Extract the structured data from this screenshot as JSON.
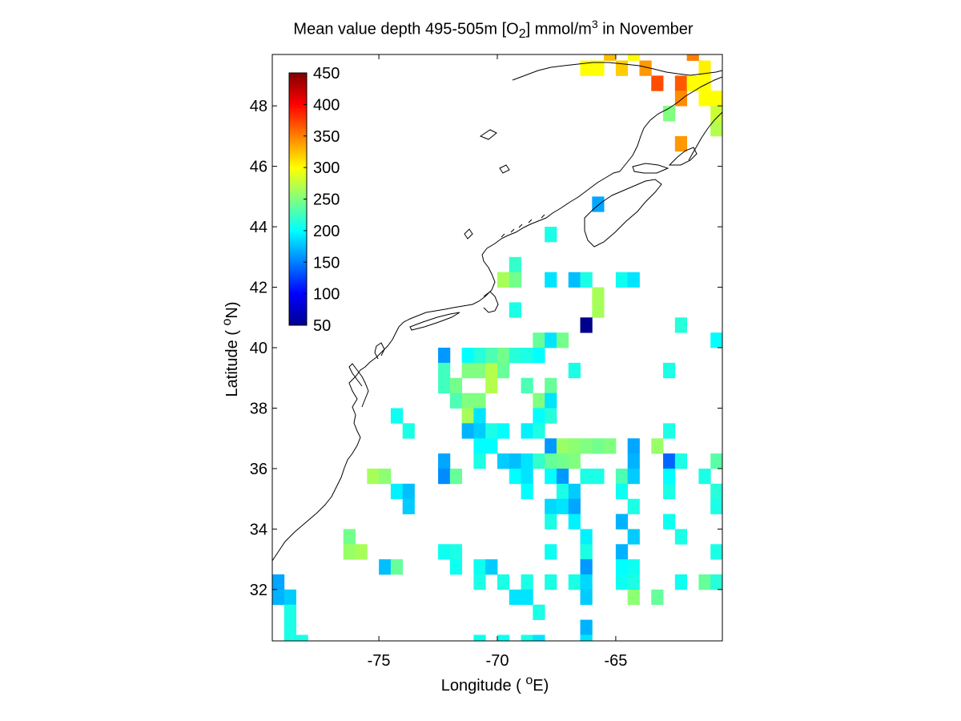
{
  "title": {
    "prefix": "Mean value depth 495-505m [O",
    "subscript": "2",
    "middle": "] mmol/m",
    "superscript": "3",
    "suffix": " in November"
  },
  "axes": {
    "x_label_prefix": "Longitude ( ",
    "x_label_sup": "o",
    "x_label_suffix": "E)",
    "y_label_prefix": "Latitude ( ",
    "y_label_sup": "o",
    "y_label_suffix": "N)",
    "x_ticks": [
      "-75",
      "-70",
      "-65"
    ],
    "y_ticks": [
      "32",
      "34",
      "36",
      "38",
      "40",
      "42",
      "44",
      "46",
      "48"
    ]
  },
  "colorbar": {
    "ticks": [
      "450",
      "400",
      "350",
      "300",
      "250",
      "200",
      "150",
      "100",
      "50"
    ],
    "min": 50,
    "max": 450,
    "colormap": "jet"
  },
  "chart_data": {
    "type": "heatmap",
    "xlabel": "Longitude ( oE)",
    "ylabel": "Latitude ( oN)",
    "xlim": [
      -79.5,
      -60.5
    ],
    "ylim": [
      30.3,
      49.7
    ],
    "cell_size_deg": 0.5,
    "value_units": "mmol/m3",
    "cells": [
      {
        "lon": -66.25,
        "lat": 49.25,
        "v": 300
      },
      {
        "lon": -65.75,
        "lat": 49.25,
        "v": 300
      },
      {
        "lon": -64.75,
        "lat": 49.25,
        "v": 320
      },
      {
        "lon": -63.75,
        "lat": 49.25,
        "v": 340
      },
      {
        "lon": -61.25,
        "lat": 49.25,
        "v": 305
      },
      {
        "lon": -65.25,
        "lat": 49.75,
        "v": 325
      },
      {
        "lon": -64.25,
        "lat": 49.75,
        "v": 300
      },
      {
        "lon": -61.75,
        "lat": 49.75,
        "v": 350
      },
      {
        "lon": -63.25,
        "lat": 48.75,
        "v": 370
      },
      {
        "lon": -62.25,
        "lat": 48.75,
        "v": 365
      },
      {
        "lon": -61.75,
        "lat": 48.75,
        "v": 300
      },
      {
        "lon": -61.25,
        "lat": 48.75,
        "v": 300
      },
      {
        "lon": -62.25,
        "lat": 48.25,
        "v": 345
      },
      {
        "lon": -60.75,
        "lat": 48.25,
        "v": 300
      },
      {
        "lon": -61.25,
        "lat": 48.25,
        "v": 300
      },
      {
        "lon": -62.75,
        "lat": 47.75,
        "v": 250
      },
      {
        "lon": -60.75,
        "lat": 47.75,
        "v": 280
      },
      {
        "lon": -60.75,
        "lat": 47.25,
        "v": 270
      },
      {
        "lon": -62.25,
        "lat": 46.75,
        "v": 340
      },
      {
        "lon": -65.75,
        "lat": 44.75,
        "v": 165
      },
      {
        "lon": -67.75,
        "lat": 43.75,
        "v": 210
      },
      {
        "lon": -69.25,
        "lat": 42.75,
        "v": 220
      },
      {
        "lon": -69.75,
        "lat": 42.25,
        "v": 265
      },
      {
        "lon": -69.25,
        "lat": 42.25,
        "v": 245
      },
      {
        "lon": -67.75,
        "lat": 42.25,
        "v": 190
      },
      {
        "lon": -66.75,
        "lat": 42.25,
        "v": 175
      },
      {
        "lon": -66.25,
        "lat": 42.25,
        "v": 210
      },
      {
        "lon": -64.75,
        "lat": 42.25,
        "v": 205
      },
      {
        "lon": -64.25,
        "lat": 42.25,
        "v": 190
      },
      {
        "lon": -65.75,
        "lat": 41.75,
        "v": 265
      },
      {
        "lon": -65.75,
        "lat": 41.25,
        "v": 265
      },
      {
        "lon": -69.25,
        "lat": 41.25,
        "v": 210
      },
      {
        "lon": -66.25,
        "lat": 40.75,
        "v": 55
      },
      {
        "lon": -62.25,
        "lat": 40.75,
        "v": 215
      },
      {
        "lon": -68.25,
        "lat": 40.25,
        "v": 240
      },
      {
        "lon": -67.75,
        "lat": 40.25,
        "v": 190
      },
      {
        "lon": -67.25,
        "lat": 40.25,
        "v": 245
      },
      {
        "lon": -60.75,
        "lat": 40.25,
        "v": 200
      },
      {
        "lon": -72.25,
        "lat": 39.75,
        "v": 160
      },
      {
        "lon": -71.25,
        "lat": 39.75,
        "v": 200
      },
      {
        "lon": -70.75,
        "lat": 39.75,
        "v": 215
      },
      {
        "lon": -70.25,
        "lat": 39.75,
        "v": 230
      },
      {
        "lon": -69.75,
        "lat": 39.75,
        "v": 245
      },
      {
        "lon": -69.25,
        "lat": 39.75,
        "v": 215
      },
      {
        "lon": -68.75,
        "lat": 39.75,
        "v": 210
      },
      {
        "lon": -68.25,
        "lat": 39.75,
        "v": 200
      },
      {
        "lon": -60.25,
        "lat": 39.75,
        "v": 170
      },
      {
        "lon": -72.25,
        "lat": 39.25,
        "v": 225
      },
      {
        "lon": -71.25,
        "lat": 39.25,
        "v": 250
      },
      {
        "lon": -70.75,
        "lat": 39.25,
        "v": 250
      },
      {
        "lon": -70.25,
        "lat": 39.25,
        "v": 270
      },
      {
        "lon": -69.75,
        "lat": 39.25,
        "v": 240
      },
      {
        "lon": -66.75,
        "lat": 39.25,
        "v": 210
      },
      {
        "lon": -62.75,
        "lat": 39.25,
        "v": 210
      },
      {
        "lon": -72.25,
        "lat": 38.75,
        "v": 225
      },
      {
        "lon": -71.75,
        "lat": 38.75,
        "v": 245
      },
      {
        "lon": -70.25,
        "lat": 38.75,
        "v": 270
      },
      {
        "lon": -68.75,
        "lat": 38.75,
        "v": 230
      },
      {
        "lon": -67.75,
        "lat": 38.75,
        "v": 240
      },
      {
        "lon": -71.75,
        "lat": 38.25,
        "v": 230
      },
      {
        "lon": -71.25,
        "lat": 38.25,
        "v": 250
      },
      {
        "lon": -70.75,
        "lat": 38.25,
        "v": 250
      },
      {
        "lon": -68.25,
        "lat": 38.25,
        "v": 250
      },
      {
        "lon": -67.75,
        "lat": 38.25,
        "v": 190
      },
      {
        "lon": -60.25,
        "lat": 38.25,
        "v": 210
      },
      {
        "lon": -74.25,
        "lat": 37.75,
        "v": 205
      },
      {
        "lon": -71.25,
        "lat": 37.75,
        "v": 265
      },
      {
        "lon": -70.75,
        "lat": 37.75,
        "v": 190
      },
      {
        "lon": -68.25,
        "lat": 37.75,
        "v": 200
      },
      {
        "lon": -67.75,
        "lat": 37.75,
        "v": 215
      },
      {
        "lon": -73.75,
        "lat": 37.25,
        "v": 210
      },
      {
        "lon": -71.25,
        "lat": 37.25,
        "v": 170
      },
      {
        "lon": -70.75,
        "lat": 37.25,
        "v": 180
      },
      {
        "lon": -70.25,
        "lat": 37.25,
        "v": 210
      },
      {
        "lon": -69.75,
        "lat": 37.25,
        "v": 200
      },
      {
        "lon": -68.75,
        "lat": 37.25,
        "v": 195
      },
      {
        "lon": -68.25,
        "lat": 37.25,
        "v": 210
      },
      {
        "lon": -62.75,
        "lat": 37.25,
        "v": 210
      },
      {
        "lon": -60.25,
        "lat": 37.25,
        "v": 230
      },
      {
        "lon": -70.75,
        "lat": 36.75,
        "v": 200
      },
      {
        "lon": -70.25,
        "lat": 36.75,
        "v": 200
      },
      {
        "lon": -67.75,
        "lat": 36.75,
        "v": 160
      },
      {
        "lon": -67.25,
        "lat": 36.75,
        "v": 260
      },
      {
        "lon": -66.75,
        "lat": 36.75,
        "v": 255
      },
      {
        "lon": -66.25,
        "lat": 36.75,
        "v": 250
      },
      {
        "lon": -65.75,
        "lat": 36.75,
        "v": 245
      },
      {
        "lon": -65.25,
        "lat": 36.75,
        "v": 250
      },
      {
        "lon": -64.25,
        "lat": 36.75,
        "v": 165
      },
      {
        "lon": -63.25,
        "lat": 36.75,
        "v": 260
      },
      {
        "lon": -72.25,
        "lat": 36.25,
        "v": 165
      },
      {
        "lon": -70.75,
        "lat": 36.25,
        "v": 210
      },
      {
        "lon": -69.75,
        "lat": 36.25,
        "v": 180
      },
      {
        "lon": -69.25,
        "lat": 36.25,
        "v": 175
      },
      {
        "lon": -68.75,
        "lat": 36.25,
        "v": 190
      },
      {
        "lon": -68.25,
        "lat": 36.25,
        "v": 220
      },
      {
        "lon": -67.75,
        "lat": 36.25,
        "v": 240
      },
      {
        "lon": -67.25,
        "lat": 36.25,
        "v": 245
      },
      {
        "lon": -66.75,
        "lat": 36.25,
        "v": 250
      },
      {
        "lon": -64.25,
        "lat": 36.25,
        "v": 170
      },
      {
        "lon": -62.75,
        "lat": 36.25,
        "v": 140
      },
      {
        "lon": -62.25,
        "lat": 36.25,
        "v": 210
      },
      {
        "lon": -60.75,
        "lat": 36.25,
        "v": 235
      },
      {
        "lon": -75.25,
        "lat": 35.75,
        "v": 265
      },
      {
        "lon": -74.75,
        "lat": 35.75,
        "v": 255
      },
      {
        "lon": -72.25,
        "lat": 35.75,
        "v": 155
      },
      {
        "lon": -71.75,
        "lat": 35.75,
        "v": 240
      },
      {
        "lon": -69.25,
        "lat": 35.75,
        "v": 200
      },
      {
        "lon": -68.75,
        "lat": 35.75,
        "v": 190
      },
      {
        "lon": -67.75,
        "lat": 35.75,
        "v": 200
      },
      {
        "lon": -67.25,
        "lat": 35.75,
        "v": 160
      },
      {
        "lon": -66.25,
        "lat": 35.75,
        "v": 210
      },
      {
        "lon": -65.75,
        "lat": 35.75,
        "v": 210
      },
      {
        "lon": -64.75,
        "lat": 35.75,
        "v": 230
      },
      {
        "lon": -64.25,
        "lat": 35.75,
        "v": 180
      },
      {
        "lon": -62.75,
        "lat": 35.75,
        "v": 200
      },
      {
        "lon": -61.25,
        "lat": 35.75,
        "v": 210
      },
      {
        "lon": -60.25,
        "lat": 35.75,
        "v": 200
      },
      {
        "lon": -74.25,
        "lat": 35.25,
        "v": 195
      },
      {
        "lon": -73.75,
        "lat": 35.25,
        "v": 175
      },
      {
        "lon": -68.75,
        "lat": 35.25,
        "v": 200
      },
      {
        "lon": -67.25,
        "lat": 35.25,
        "v": 210
      },
      {
        "lon": -66.75,
        "lat": 35.25,
        "v": 180
      },
      {
        "lon": -64.75,
        "lat": 35.25,
        "v": 205
      },
      {
        "lon": -62.75,
        "lat": 35.25,
        "v": 210
      },
      {
        "lon": -60.75,
        "lat": 35.25,
        "v": 215
      },
      {
        "lon": -73.75,
        "lat": 34.75,
        "v": 180
      },
      {
        "lon": -67.75,
        "lat": 34.75,
        "v": 185
      },
      {
        "lon": -67.25,
        "lat": 34.75,
        "v": 190
      },
      {
        "lon": -66.75,
        "lat": 34.75,
        "v": 165
      },
      {
        "lon": -64.25,
        "lat": 34.75,
        "v": 210
      },
      {
        "lon": -60.75,
        "lat": 34.75,
        "v": 210
      },
      {
        "lon": -67.75,
        "lat": 34.25,
        "v": 210
      },
      {
        "lon": -66.75,
        "lat": 34.25,
        "v": 195
      },
      {
        "lon": -64.75,
        "lat": 34.25,
        "v": 170
      },
      {
        "lon": -62.75,
        "lat": 34.25,
        "v": 205
      },
      {
        "lon": -60.25,
        "lat": 34.25,
        "v": 210
      },
      {
        "lon": -76.25,
        "lat": 33.75,
        "v": 245
      },
      {
        "lon": -66.25,
        "lat": 33.75,
        "v": 195
      },
      {
        "lon": -64.25,
        "lat": 33.75,
        "v": 180
      },
      {
        "lon": -62.25,
        "lat": 33.75,
        "v": 210
      },
      {
        "lon": -76.25,
        "lat": 33.25,
        "v": 260
      },
      {
        "lon": -75.75,
        "lat": 33.25,
        "v": 265
      },
      {
        "lon": -72.25,
        "lat": 33.25,
        "v": 205
      },
      {
        "lon": -71.75,
        "lat": 33.25,
        "v": 210
      },
      {
        "lon": -67.75,
        "lat": 33.25,
        "v": 205
      },
      {
        "lon": -66.25,
        "lat": 33.25,
        "v": 210
      },
      {
        "lon": -64.75,
        "lat": 33.25,
        "v": 170
      },
      {
        "lon": -60.75,
        "lat": 33.25,
        "v": 210
      },
      {
        "lon": -60.25,
        "lat": 33.25,
        "v": 190
      },
      {
        "lon": -74.75,
        "lat": 32.75,
        "v": 175
      },
      {
        "lon": -74.25,
        "lat": 32.75,
        "v": 240
      },
      {
        "lon": -71.75,
        "lat": 32.75,
        "v": 205
      },
      {
        "lon": -70.75,
        "lat": 32.75,
        "v": 205
      },
      {
        "lon": -70.25,
        "lat": 32.75,
        "v": 180
      },
      {
        "lon": -66.25,
        "lat": 32.75,
        "v": 160
      },
      {
        "lon": -64.75,
        "lat": 32.75,
        "v": 200
      },
      {
        "lon": -64.25,
        "lat": 32.75,
        "v": 205
      },
      {
        "lon": -79.25,
        "lat": 32.25,
        "v": 165
      },
      {
        "lon": -70.75,
        "lat": 32.25,
        "v": 210
      },
      {
        "lon": -69.75,
        "lat": 32.25,
        "v": 210
      },
      {
        "lon": -68.75,
        "lat": 32.25,
        "v": 210
      },
      {
        "lon": -67.75,
        "lat": 32.25,
        "v": 210
      },
      {
        "lon": -66.75,
        "lat": 32.25,
        "v": 210
      },
      {
        "lon": -66.25,
        "lat": 32.25,
        "v": 185
      },
      {
        "lon": -64.75,
        "lat": 32.25,
        "v": 205
      },
      {
        "lon": -64.25,
        "lat": 32.25,
        "v": 210
      },
      {
        "lon": -62.25,
        "lat": 32.25,
        "v": 205
      },
      {
        "lon": -61.25,
        "lat": 32.25,
        "v": 240
      },
      {
        "lon": -60.75,
        "lat": 32.25,
        "v": 215
      },
      {
        "lon": -79.25,
        "lat": 31.75,
        "v": 170
      },
      {
        "lon": -78.75,
        "lat": 31.75,
        "v": 180
      },
      {
        "lon": -69.25,
        "lat": 31.75,
        "v": 190
      },
      {
        "lon": -68.75,
        "lat": 31.75,
        "v": 190
      },
      {
        "lon": -66.25,
        "lat": 31.75,
        "v": 180
      },
      {
        "lon": -64.25,
        "lat": 31.75,
        "v": 255
      },
      {
        "lon": -63.25,
        "lat": 31.75,
        "v": 240
      },
      {
        "lon": -78.75,
        "lat": 31.25,
        "v": 210
      },
      {
        "lon": -68.25,
        "lat": 31.25,
        "v": 210
      },
      {
        "lon": -78.75,
        "lat": 30.75,
        "v": 210
      },
      {
        "lon": -66.25,
        "lat": 30.75,
        "v": 170
      },
      {
        "lon": -60.25,
        "lat": 30.75,
        "v": 210
      },
      {
        "lon": -78.75,
        "lat": 30.25,
        "v": 210
      },
      {
        "lon": -78.25,
        "lat": 30.25,
        "v": 210
      },
      {
        "lon": -70.75,
        "lat": 30.25,
        "v": 205
      },
      {
        "lon": -69.75,
        "lat": 30.25,
        "v": 205
      },
      {
        "lon": -68.75,
        "lat": 30.25,
        "v": 210
      },
      {
        "lon": -68.25,
        "lat": 30.25,
        "v": 190
      },
      {
        "lon": -66.25,
        "lat": 30.25,
        "v": 190
      }
    ]
  }
}
